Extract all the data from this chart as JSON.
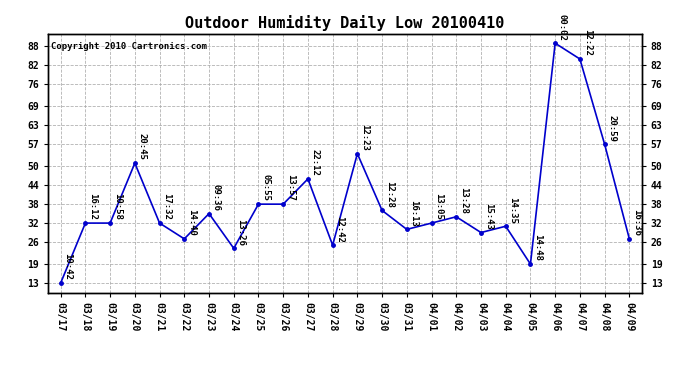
{
  "title": "Outdoor Humidity Daily Low 20100410",
  "copyright": "Copyright 2010 Cartronics.com",
  "x_labels": [
    "03/17",
    "03/18",
    "03/19",
    "03/20",
    "03/21",
    "03/22",
    "03/23",
    "03/24",
    "03/25",
    "03/26",
    "03/27",
    "03/28",
    "03/29",
    "03/30",
    "03/31",
    "04/01",
    "04/02",
    "04/03",
    "04/04",
    "04/05",
    "04/06",
    "04/07",
    "04/08",
    "04/09"
  ],
  "y_values": [
    13,
    32,
    32,
    51,
    32,
    27,
    35,
    24,
    38,
    38,
    46,
    25,
    54,
    36,
    30,
    32,
    34,
    29,
    31,
    19,
    89,
    84,
    57,
    27
  ],
  "point_labels": [
    "10:42",
    "16:12",
    "10:58",
    "20:45",
    "17:32",
    "14:40",
    "09:36",
    "13:26",
    "05:55",
    "13:57",
    "22:12",
    "12:42",
    "12:23",
    "12:28",
    "16:13",
    "13:05",
    "13:28",
    "15:43",
    "14:35",
    "14:48",
    "00:02",
    "12:22",
    "20:59",
    "16:36"
  ],
  "line_color": "#0000cc",
  "marker_color": "#0000cc",
  "bg_color": "#ffffff",
  "grid_color": "#aaaaaa",
  "y_ticks": [
    13,
    19,
    26,
    32,
    38,
    44,
    50,
    57,
    63,
    69,
    76,
    82,
    88
  ],
  "ylim": [
    10,
    92
  ],
  "title_fontsize": 11,
  "label_fontsize": 6.5,
  "copyright_fontsize": 6.5,
  "tick_fontsize": 7
}
